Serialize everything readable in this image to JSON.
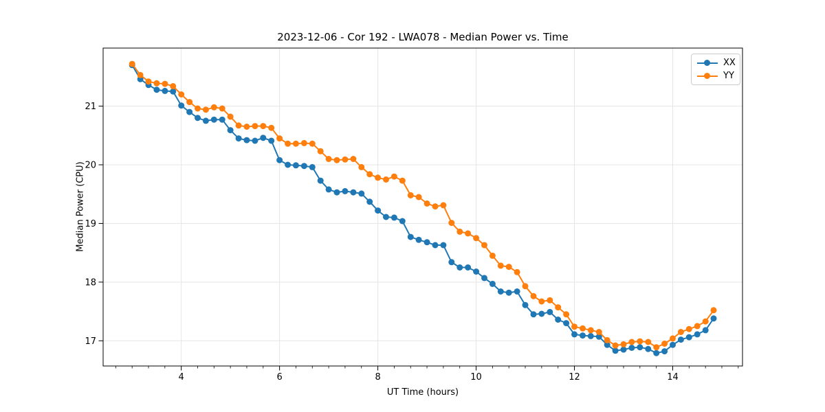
{
  "chart_data": {
    "type": "line",
    "title": "2023-12-06 - Cor 192 - LWA078 - Median Power vs. Time",
    "xlabel": "UT Time (hours)",
    "ylabel": "Median Power (CPU)",
    "xlim": [
      2.41,
      15.42
    ],
    "ylim": [
      16.57,
      21.99
    ],
    "x_ticks": [
      4,
      6,
      8,
      10,
      12,
      14
    ],
    "y_ticks": [
      17,
      18,
      19,
      20,
      21
    ],
    "x_minor_tick_step": 0.33333,
    "grid": true,
    "grid_color": "#e5e5e5",
    "legend": {
      "position": "upper right",
      "entries": [
        "XX",
        "YY"
      ]
    },
    "x": [
      3.0,
      3.167,
      3.333,
      3.5,
      3.667,
      3.833,
      4.0,
      4.167,
      4.333,
      4.5,
      4.667,
      4.833,
      5.0,
      5.167,
      5.333,
      5.5,
      5.667,
      5.833,
      6.0,
      6.167,
      6.333,
      6.5,
      6.667,
      6.833,
      7.0,
      7.167,
      7.333,
      7.5,
      7.667,
      7.833,
      8.0,
      8.167,
      8.333,
      8.5,
      8.667,
      8.833,
      9.0,
      9.167,
      9.333,
      9.5,
      9.667,
      9.833,
      10.0,
      10.167,
      10.333,
      10.5,
      10.667,
      10.833,
      11.0,
      11.167,
      11.333,
      11.5,
      11.667,
      11.833,
      12.0,
      12.167,
      12.333,
      12.5,
      12.667,
      12.833,
      13.0,
      13.167,
      13.333,
      13.5,
      13.667,
      13.833,
      14.0,
      14.167,
      14.333,
      14.5,
      14.667,
      14.833
    ],
    "series": [
      {
        "name": "XX",
        "color": "#1f77b4",
        "marker": "circle",
        "values": [
          21.7,
          21.46,
          21.36,
          21.28,
          21.26,
          21.25,
          21.01,
          20.9,
          20.8,
          20.75,
          20.77,
          20.77,
          20.59,
          20.45,
          20.42,
          20.41,
          20.46,
          20.41,
          20.08,
          20.0,
          19.99,
          19.98,
          19.96,
          19.73,
          19.58,
          19.53,
          19.55,
          19.53,
          19.51,
          19.37,
          19.22,
          19.11,
          19.1,
          19.04,
          18.77,
          18.72,
          18.68,
          18.63,
          18.63,
          18.34,
          18.25,
          18.25,
          18.18,
          18.07,
          17.97,
          17.84,
          17.82,
          17.84,
          17.61,
          17.45,
          17.46,
          17.49,
          17.36,
          17.3,
          17.11,
          17.09,
          17.08,
          17.07,
          16.93,
          16.83,
          16.85,
          16.88,
          16.89,
          16.86,
          16.79,
          16.82,
          16.93,
          17.02,
          17.06,
          17.11,
          17.18,
          17.38
        ]
      },
      {
        "name": "YY",
        "color": "#ff7f0e",
        "marker": "circle",
        "values": [
          21.72,
          21.53,
          21.42,
          21.39,
          21.38,
          21.34,
          21.2,
          21.07,
          20.96,
          20.94,
          20.98,
          20.96,
          20.82,
          20.67,
          20.65,
          20.66,
          20.66,
          20.63,
          20.45,
          20.36,
          20.36,
          20.37,
          20.36,
          20.23,
          20.1,
          20.08,
          20.09,
          20.1,
          19.96,
          19.84,
          19.78,
          19.75,
          19.8,
          19.73,
          19.48,
          19.45,
          19.34,
          19.29,
          19.31,
          19.01,
          18.86,
          18.83,
          18.75,
          18.63,
          18.45,
          18.28,
          18.26,
          18.17,
          17.93,
          17.76,
          17.67,
          17.69,
          17.57,
          17.45,
          17.24,
          17.21,
          17.18,
          17.15,
          17.01,
          16.92,
          16.94,
          16.98,
          16.99,
          16.98,
          16.89,
          16.95,
          17.04,
          17.15,
          17.2,
          17.25,
          17.33,
          17.52
        ]
      }
    ]
  }
}
